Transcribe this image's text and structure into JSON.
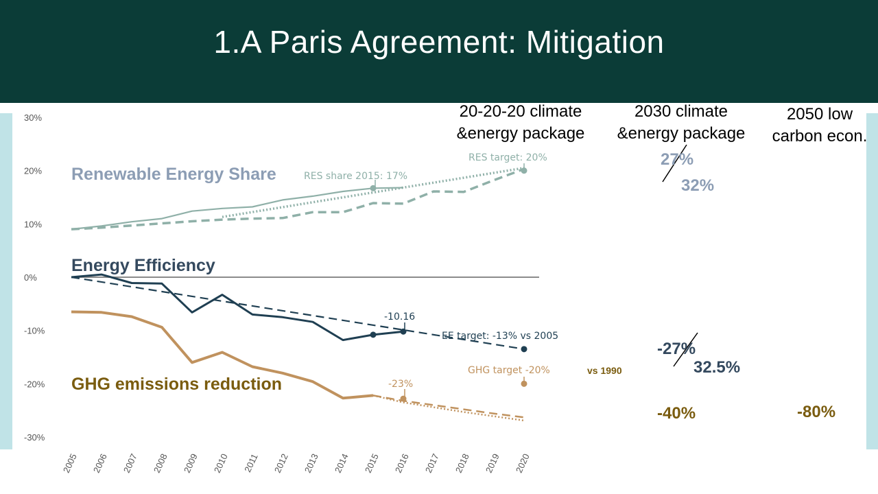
{
  "slide": {
    "title": "1.A Paris Agreement: Mitigation"
  },
  "columns": {
    "package_2020": [
      "20-20-20 climate",
      "&energy package"
    ],
    "package_2030": [
      "2030 climate",
      "&energy package"
    ],
    "economy_2050": [
      "2050 low",
      "carbon econ."
    ]
  },
  "targets_2030": {
    "renewables_old": "27%",
    "renewables_new": "32%",
    "efficiency_old": "-27%",
    "efficiency_new": "32.5%",
    "ghg": "-40%"
  },
  "targets_2050": {
    "ghg": "-80%"
  },
  "colors": {
    "header_bg": "#0b3c37",
    "side_bar": "#c0e3e7",
    "res": "#8fb0a8",
    "res_label": "#8c9db4",
    "ee": "#1f3f52",
    "ghg": "#c0925e",
    "ghg_label": "#7a5c0f",
    "axis_text": "#555555"
  },
  "chart_data": {
    "type": "line",
    "x": [
      2005,
      2006,
      2007,
      2008,
      2009,
      2010,
      2011,
      2012,
      2013,
      2014,
      2015,
      2016,
      2017,
      2018,
      2019,
      2020
    ],
    "ylim": [
      -30,
      30
    ],
    "yticks": [
      30,
      20,
      10,
      0,
      -10,
      -20,
      -30
    ],
    "ytick_labels": [
      "30%",
      "20%",
      "10%",
      "0%",
      "-10%",
      "-20%",
      "-30%"
    ],
    "xtick_labels": [
      "2005",
      "2006",
      "2007",
      "2008",
      "2009",
      "2010",
      "2011",
      "2012",
      "2013",
      "2014",
      "2015",
      "2016",
      "2017",
      "2018",
      "2019",
      "2020"
    ],
    "groups": [
      {
        "key": "res",
        "label": "Renewable Energy Share",
        "series": [
          {
            "style": "solid",
            "x": [
              2005,
              2006,
              2007,
              2008,
              2009,
              2010,
              2011,
              2012,
              2013,
              2014,
              2015,
              2016
            ],
            "y": [
              9.0,
              9.6,
              10.4,
              11.0,
              12.4,
              12.9,
              13.2,
              14.5,
              15.2,
              16.1,
              16.7,
              16.8
            ]
          },
          {
            "style": "dotted",
            "x": [
              2010,
              2020
            ],
            "y": [
              11.3,
              20.5
            ]
          },
          {
            "style": "dashed",
            "x": [
              2005,
              2006,
              2007,
              2008,
              2009,
              2010,
              2011,
              2012,
              2013,
              2014,
              2015,
              2016,
              2017,
              2018,
              2019,
              2020
            ],
            "y": [
              9.0,
              9.3,
              9.7,
              10.1,
              10.5,
              10.8,
              11.0,
              11.1,
              12.2,
              12.2,
              13.9,
              13.8,
              16.1,
              16.0,
              18.2,
              20.3
            ]
          }
        ],
        "markers": [
          {
            "x": 2015,
            "y": 16.7
          },
          {
            "x": 2020,
            "y": 20.0
          }
        ],
        "annotations": [
          "RES share 2015: 17%",
          "RES target: 20%"
        ]
      },
      {
        "key": "ee",
        "label": "Energy Efficiency",
        "series": [
          {
            "style": "solid",
            "x": [
              2005,
              2006,
              2007,
              2008,
              2009,
              2010,
              2011,
              2012,
              2013,
              2014,
              2015,
              2016
            ],
            "y": [
              0.0,
              0.5,
              -1.1,
              -1.2,
              -6.6,
              -3.3,
              -7.0,
              -7.5,
              -8.4,
              -11.8,
              -10.8,
              -10.2
            ]
          },
          {
            "style": "dashed",
            "x": [
              2005,
              2020
            ],
            "y": [
              0.0,
              -13.5
            ]
          }
        ],
        "markers": [
          {
            "x": 2015,
            "y": -10.8
          },
          {
            "x": 2016,
            "y": -10.2
          },
          {
            "x": 2020,
            "y": -13.5
          }
        ],
        "annotations": [
          "-10.16",
          "EE target: -13% vs 2005"
        ]
      },
      {
        "key": "ghg",
        "label": "GHG emissions reduction",
        "series": [
          {
            "style": "solid",
            "x": [
              2005,
              2006,
              2007,
              2008,
              2009,
              2010,
              2011,
              2012,
              2013,
              2014,
              2015
            ],
            "y": [
              -6.5,
              -6.6,
              -7.4,
              -9.4,
              -16.0,
              -14.1,
              -16.8,
              -18.0,
              -19.6,
              -22.7,
              -22.2
            ]
          },
          {
            "style": "dashed",
            "x": [
              2015,
              2016,
              2017,
              2018,
              2019,
              2020
            ],
            "y": [
              -22.2,
              -23.2,
              -24.0,
              -24.8,
              -25.6,
              -26.3
            ]
          },
          {
            "style": "dotted",
            "x": [
              2015,
              2016,
              2017,
              2018,
              2019,
              2020
            ],
            "y": [
              -22.2,
              -23.5,
              -24.4,
              -25.3,
              -26.1,
              -26.9
            ]
          }
        ],
        "markers": [
          {
            "x": 2016,
            "y": -22.8
          },
          {
            "x": 2020,
            "y": -20.0
          }
        ],
        "annotations": [
          "-23%",
          "GHG target -20%",
          "vs 1990"
        ]
      }
    ]
  }
}
